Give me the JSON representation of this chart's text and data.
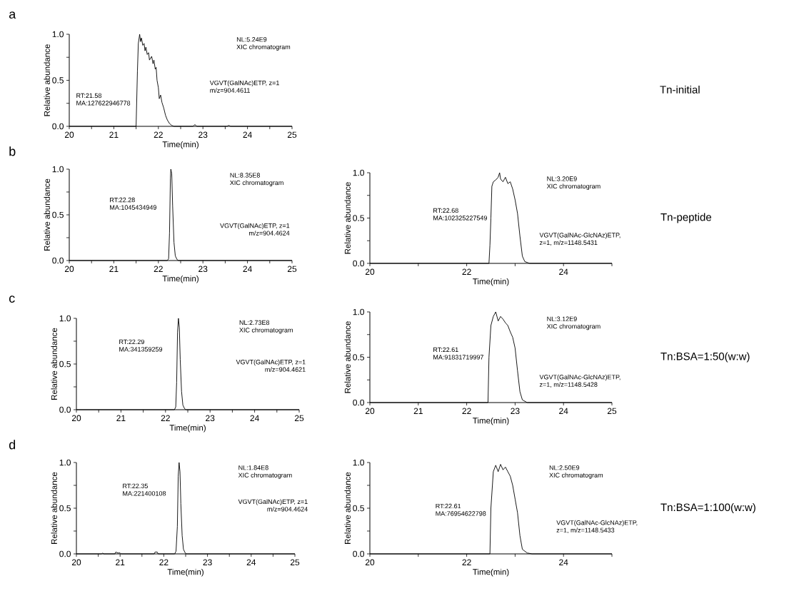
{
  "chart_data": [
    {
      "type": "line",
      "title": "a",
      "xlabel": "Time(min)",
      "ylabel": "Relative abundance",
      "annotations": [
        "RT:21.58",
        "MA:127622946778",
        "NL:5.24E9",
        "XIC chromatogram",
        "VGVT(GalNAc)ETP, z=1",
        "m/z=904.4611",
        "Tn-initial"
      ],
      "x": [
        20,
        21,
        21.5,
        21.53,
        21.55,
        21.58,
        21.6,
        21.62,
        21.65,
        21.68,
        21.7,
        21.72,
        21.75,
        21.78,
        21.8,
        21.85,
        21.88,
        21.9,
        21.93,
        21.95,
        21.97,
        22.0,
        22.02,
        22.05,
        22.08,
        22.12,
        22.16,
        22.2,
        22.25,
        22.3,
        22.35,
        22.78,
        22.82,
        22.86,
        23.54,
        23.58,
        23.62,
        25
      ],
      "values": [
        0,
        0,
        0,
        0.6,
        0.9,
        1.0,
        0.92,
        0.96,
        0.88,
        0.9,
        0.82,
        0.86,
        0.78,
        0.8,
        0.72,
        0.76,
        0.68,
        0.72,
        0.62,
        0.64,
        0.5,
        0.42,
        0.3,
        0.34,
        0.26,
        0.2,
        0.12,
        0.07,
        0.03,
        0.01,
        0,
        0,
        0.02,
        0,
        0,
        0.01,
        0,
        0
      ],
      "xlim": [
        20,
        25
      ],
      "ylim": [
        0,
        1
      ],
      "xticks": [
        20,
        {
          "value": 20.5,
          "label": null
        },
        21,
        {
          "value": 21.5,
          "label": null
        },
        22,
        {
          "value": 22.5,
          "label": null
        },
        23,
        {
          "value": 23.5,
          "label": null
        },
        24,
        {
          "value": 24.5,
          "label": null
        },
        25
      ],
      "yticks": [
        {
          "value": 0,
          "label": "0.0"
        },
        {
          "value": 0.25,
          "label": null
        },
        {
          "value": 0.5,
          "label": "0.5"
        },
        {
          "value": 0.75,
          "label": null
        },
        {
          "value": 1,
          "label": "1.0"
        }
      ]
    },
    {
      "type": "line",
      "title": "b",
      "xlabel": "Time(min)",
      "ylabel": "Relative abundance",
      "annotations": [
        "RT:22.28",
        "MA:1045434949",
        "NL:8.35E8",
        "XIC chromatogram",
        "VGVT(GalNAc)ETP, z=1",
        "m/z=904.4624"
      ],
      "x": [
        20,
        22.2,
        22.23,
        22.25,
        22.27,
        22.28,
        22.3,
        22.32,
        22.35,
        22.38,
        22.42,
        22.45,
        25
      ],
      "values": [
        0,
        0,
        0.02,
        0.3,
        0.9,
        1.0,
        0.95,
        0.6,
        0.2,
        0.05,
        0.01,
        0,
        0
      ],
      "xlim": [
        20,
        25
      ],
      "ylim": [
        0,
        1
      ],
      "xticks": [
        20,
        {
          "value": 20.5,
          "label": null
        },
        21,
        {
          "value": 21.5,
          "label": null
        },
        22,
        {
          "value": 22.5,
          "label": null
        },
        23,
        {
          "value": 23.5,
          "label": null
        },
        24,
        {
          "value": 24.5,
          "label": null
        },
        25
      ],
      "yticks": [
        {
          "value": 0,
          "label": "0.0"
        },
        {
          "value": 0.25,
          "label": null
        },
        {
          "value": 0.5,
          "label": "0.5"
        },
        {
          "value": 0.75,
          "label": null
        },
        {
          "value": 1,
          "label": "1.0"
        }
      ]
    },
    {
      "type": "line",
      "xlabel": "Time(min)",
      "ylabel": "Relative abundance",
      "annotations": [
        "RT:22.68",
        "MA:102325227549",
        "NL:3.20E9",
        "XIC chromatogram",
        "VGVT(GalNAc-GlcNAz)ETP,",
        "z=1, m/z=1148.5431",
        "Tn-peptide"
      ],
      "x": [
        20,
        22.46,
        22.48,
        22.5,
        22.52,
        22.55,
        22.6,
        22.65,
        22.68,
        22.7,
        22.75,
        22.8,
        22.85,
        22.9,
        22.95,
        23.0,
        23.05,
        23.1,
        23.15,
        23.2,
        23.3,
        25
      ],
      "values": [
        0,
        0,
        0.2,
        0.5,
        0.85,
        0.9,
        0.92,
        0.95,
        1.0,
        0.93,
        0.9,
        0.95,
        0.88,
        0.9,
        0.82,
        0.7,
        0.55,
        0.3,
        0.08,
        0.02,
        0,
        0
      ],
      "xlim": [
        20,
        25
      ],
      "ylim": [
        0,
        1
      ],
      "xticks": [
        20,
        {
          "value": 21,
          "label": null
        },
        22,
        {
          "value": 23,
          "label": null
        },
        24,
        {
          "value": 25,
          "label": null
        }
      ],
      "yticks": [
        {
          "value": 0,
          "label": "0.0"
        },
        {
          "value": 0.25,
          "label": null
        },
        {
          "value": 0.5,
          "label": "0.5"
        },
        {
          "value": 0.75,
          "label": null
        },
        {
          "value": 1,
          "label": "1.0"
        }
      ]
    },
    {
      "type": "line",
      "title": "c",
      "xlabel": "Time(min)",
      "ylabel": "Relative abundance",
      "annotations": [
        "RT:22.29",
        "MA:341359259",
        "NL:2.73E8",
        "XIC chromatogram",
        "VGVT(GalNAc)ETP, z=1",
        "m/z=904.4621"
      ],
      "x": [
        20,
        22.2,
        22.23,
        22.25,
        22.27,
        22.29,
        22.31,
        22.33,
        22.36,
        22.39,
        22.43,
        22.46,
        25
      ],
      "values": [
        0,
        0,
        0.03,
        0.3,
        0.85,
        1.0,
        0.9,
        0.55,
        0.2,
        0.05,
        0.01,
        0,
        0
      ],
      "xlim": [
        20,
        25
      ],
      "ylim": [
        0,
        1
      ],
      "xticks": [
        20,
        {
          "value": 20.5,
          "label": null
        },
        21,
        {
          "value": 21.5,
          "label": null
        },
        22,
        {
          "value": 22.5,
          "label": null
        },
        23,
        {
          "value": 23.5,
          "label": null
        },
        24,
        {
          "value": 24.5,
          "label": null
        },
        25
      ],
      "yticks": [
        {
          "value": 0,
          "label": "0.0"
        },
        {
          "value": 0.25,
          "label": null
        },
        {
          "value": 0.5,
          "label": "0.5"
        },
        {
          "value": 0.75,
          "label": null
        },
        {
          "value": 1,
          "label": "1.0"
        }
      ]
    },
    {
      "type": "line",
      "xlabel": "Time(min)",
      "ylabel": "Relative abundance",
      "annotations": [
        "RT:22.61",
        "MA:91831719997",
        "NL:3.12E9",
        "XIC chromatogram",
        "VGVT(GalNAc-GlcNAz)ETP,",
        "z=1, m/z=1148.5428",
        "Tn:BSA=1:50(w:w)"
      ],
      "x": [
        20,
        22.44,
        22.46,
        22.5,
        22.55,
        22.6,
        22.65,
        22.7,
        22.75,
        22.8,
        22.85,
        22.9,
        22.95,
        23.0,
        23.05,
        23.1,
        23.15,
        23.25,
        25
      ],
      "values": [
        0,
        0,
        0.5,
        0.85,
        0.95,
        1.0,
        0.9,
        0.95,
        0.92,
        0.88,
        0.85,
        0.78,
        0.72,
        0.6,
        0.35,
        0.12,
        0.03,
        0,
        0
      ],
      "xlim": [
        20,
        25
      ],
      "ylim": [
        0,
        1
      ],
      "xticks": [
        20,
        21,
        22,
        23,
        24,
        25
      ],
      "yticks": [
        {
          "value": 0,
          "label": "0.0"
        },
        {
          "value": 0.25,
          "label": null
        },
        {
          "value": 0.5,
          "label": "0.5"
        },
        {
          "value": 0.75,
          "label": null
        },
        {
          "value": 1,
          "label": "1.0"
        }
      ]
    },
    {
      "type": "line",
      "title": "d",
      "xlabel": "Time(min)",
      "ylabel": "Relative abundance",
      "annotations": [
        "RT:22.35",
        "MA:221400108",
        "NL:1.84E8",
        "XIC chromatogram",
        "VGVT(GalNAc)ETP, z=1",
        "m/z=904.4624"
      ],
      "x": [
        20,
        20.58,
        20.6,
        20.62,
        20.88,
        20.9,
        20.95,
        21.0,
        21.02,
        21.78,
        21.8,
        21.85,
        21.87,
        22.25,
        22.28,
        22.31,
        22.33,
        22.35,
        22.37,
        22.39,
        22.42,
        22.45,
        22.49,
        22.52,
        25
      ],
      "values": [
        0,
        0,
        0.01,
        0,
        0,
        0.02,
        0.01,
        0.01,
        0,
        0,
        0.02,
        0.02,
        0,
        0,
        0.03,
        0.3,
        0.85,
        1.0,
        0.9,
        0.55,
        0.2,
        0.05,
        0.01,
        0,
        0
      ],
      "xlim": [
        20,
        25
      ],
      "ylim": [
        0,
        1
      ],
      "xticks": [
        20,
        {
          "value": 20.5,
          "label": null
        },
        21,
        {
          "value": 21.5,
          "label": null
        },
        22,
        {
          "value": 22.5,
          "label": null
        },
        23,
        {
          "value": 23.5,
          "label": null
        },
        24,
        {
          "value": 24.5,
          "label": null
        },
        25
      ],
      "yticks": [
        {
          "value": 0,
          "label": "0.0"
        },
        {
          "value": 0.25,
          "label": null
        },
        {
          "value": 0.5,
          "label": "0.5"
        },
        {
          "value": 0.75,
          "label": null
        },
        {
          "value": 1,
          "label": "1.0"
        }
      ]
    },
    {
      "type": "line",
      "xlabel": "Time(min)",
      "ylabel": "Relative abundance",
      "annotations": [
        "RT:22.61",
        "MA:76954622798",
        "NL:2.50E9",
        "XIC chromatogram",
        "VGVT(GalNAc-GlcNAz)ETP,",
        "z=1, m/z=1148.5433",
        "Tn:BSA=1:100(w:w)"
      ],
      "x": [
        20,
        22.48,
        22.5,
        22.55,
        22.6,
        22.65,
        22.7,
        22.75,
        22.8,
        22.85,
        22.9,
        22.95,
        23.0,
        23.05,
        23.1,
        23.15,
        23.25,
        23.35,
        25
      ],
      "values": [
        0,
        0,
        0.5,
        0.9,
        0.97,
        0.9,
        0.98,
        0.92,
        0.95,
        0.9,
        0.85,
        0.75,
        0.6,
        0.45,
        0.2,
        0.05,
        0.01,
        0,
        0
      ],
      "xlim": [
        20,
        25
      ],
      "ylim": [
        0,
        1
      ],
      "xticks": [
        20,
        {
          "value": 21,
          "label": null
        },
        22,
        {
          "value": 23,
          "label": null
        },
        24,
        {
          "value": 25,
          "label": null
        }
      ],
      "yticks": [
        {
          "value": 0,
          "label": "0.0"
        },
        {
          "value": 0.25,
          "label": null
        },
        {
          "value": 0.5,
          "label": "0.5"
        },
        {
          "value": 0.75,
          "label": null
        },
        {
          "value": 1,
          "label": "1.0"
        }
      ]
    }
  ]
}
